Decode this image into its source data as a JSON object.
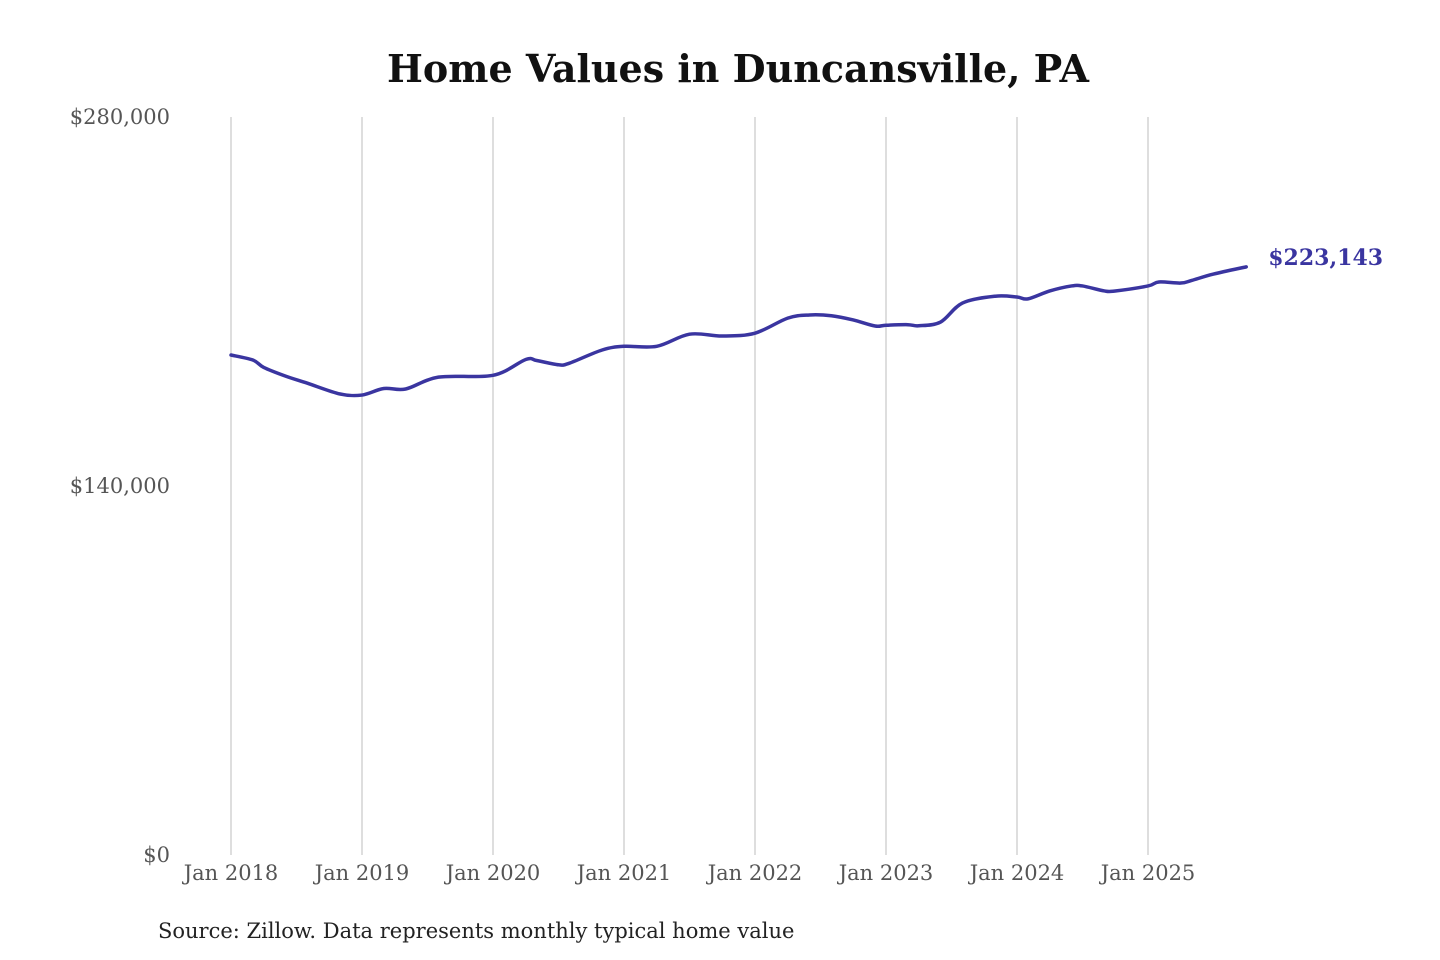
{
  "chart_data": {
    "type": "line",
    "title": "Home Values in Duncansville, PA",
    "source": "Source: Zillow. Data represents monthly typical home value",
    "xlabel": "",
    "ylabel": "",
    "ylim": [
      0,
      280000
    ],
    "y_ticks": [
      0,
      140000,
      280000
    ],
    "y_tick_labels": [
      "$0",
      "$140,000",
      "$280,000"
    ],
    "x_ticks": [
      "2018-01",
      "2019-01",
      "2020-01",
      "2021-01",
      "2022-01",
      "2023-01",
      "2024-01",
      "2025-01"
    ],
    "x_tick_labels": [
      "Jan 2018",
      "Jan 2019",
      "Jan 2020",
      "Jan 2021",
      "Jan 2022",
      "Jan 2023",
      "Jan 2024",
      "Jan 2025"
    ],
    "grid": "vertical",
    "color": "#3a35a0",
    "end_label": "$223,143",
    "series": [
      {
        "points": [
          [
            "2018-01",
            189700
          ],
          [
            "2018-03",
            187800
          ],
          [
            "2018-04",
            185000
          ],
          [
            "2018-06",
            181700
          ],
          [
            "2018-08",
            179000
          ],
          [
            "2018-11",
            174900
          ],
          [
            "2019-01",
            174500
          ],
          [
            "2019-03",
            177000
          ],
          [
            "2019-05",
            176800
          ],
          [
            "2019-08",
            181300
          ],
          [
            "2020-01",
            182000
          ],
          [
            "2020-04",
            188000
          ],
          [
            "2020-05",
            187600
          ],
          [
            "2020-07",
            186000
          ],
          [
            "2020-08",
            186600
          ],
          [
            "2020-11",
            191600
          ],
          [
            "2021-01",
            193000
          ],
          [
            "2021-04",
            193000
          ],
          [
            "2021-07",
            197600
          ],
          [
            "2021-10",
            196900
          ],
          [
            "2022-01",
            198000
          ],
          [
            "2022-04",
            203700
          ],
          [
            "2022-06",
            204900
          ],
          [
            "2022-08",
            204600
          ],
          [
            "2022-10",
            203000
          ],
          [
            "2022-12",
            200700
          ],
          [
            "2023-01",
            201000
          ],
          [
            "2023-03",
            201200
          ],
          [
            "2023-04",
            200800
          ],
          [
            "2023-06",
            202200
          ],
          [
            "2023-08",
            209400
          ],
          [
            "2023-11",
            212000
          ],
          [
            "2024-01",
            211700
          ],
          [
            "2024-02",
            211000
          ],
          [
            "2024-04",
            214000
          ],
          [
            "2024-06",
            215900
          ],
          [
            "2024-07",
            215900
          ],
          [
            "2024-09",
            214000
          ],
          [
            "2024-10",
            214000
          ],
          [
            "2025-01",
            215900
          ],
          [
            "2025-02",
            217400
          ],
          [
            "2025-04",
            217000
          ],
          [
            "2025-05",
            218000
          ],
          [
            "2025-07",
            220400
          ],
          [
            "2025-10",
            223143
          ]
        ]
      }
    ]
  }
}
